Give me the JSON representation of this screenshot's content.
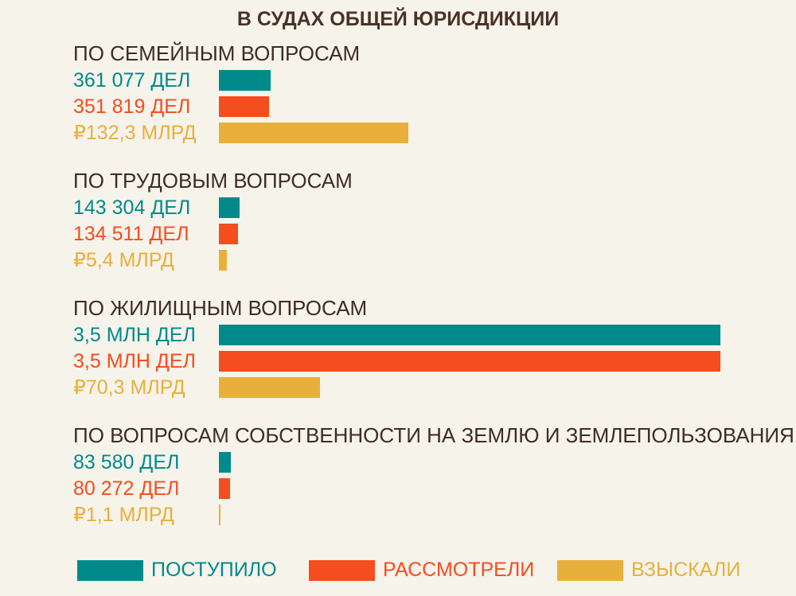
{
  "chart_data": {
    "type": "bar",
    "orientation": "horizontal",
    "title": "В СУДАХ ОБЩЕЙ ЮРИСДИКЦИИ",
    "legend": {
      "placement": "bottom",
      "entries": [
        "ПОСТУПИЛО",
        "РАССМОТРЕЛИ",
        "ВЗЫСКАЛИ"
      ]
    },
    "colors": [
      "#008a8a",
      "#f44d1f",
      "#e8b03a"
    ],
    "scales": {
      "cases_max": 3500000,
      "money_max_bn": 350
    },
    "groups": [
      {
        "name": "ПО СЕМЕЙНЫМ ВОПРОСАМ",
        "series": [
          {
            "name": "ПОСТУПИЛО",
            "value": 361077,
            "unit": "cases",
            "label": "361 077 ДЕЛ"
          },
          {
            "name": "РАССМОТРЕЛИ",
            "value": 351819,
            "unit": "cases",
            "label": "351 819 ДЕЛ"
          },
          {
            "name": "ВЗЫСКАЛИ",
            "value": 132.3,
            "unit": "bn_rub",
            "label": "₽132,3 МЛРД"
          }
        ]
      },
      {
        "name": "ПО ТРУДОВЫМ ВОПРОСАМ",
        "series": [
          {
            "name": "ПОСТУПИЛО",
            "value": 143304,
            "unit": "cases",
            "label": "143 304 ДЕЛ"
          },
          {
            "name": "РАССМОТРЕЛИ",
            "value": 134511,
            "unit": "cases",
            "label": "134 511 ДЕЛ"
          },
          {
            "name": "ВЗЫСКАЛИ",
            "value": 5.4,
            "unit": "bn_rub",
            "label": "₽5,4 МЛРД"
          }
        ]
      },
      {
        "name": "ПО ЖИЛИЩНЫМ ВОПРОСАМ",
        "series": [
          {
            "name": "ПОСТУПИЛО",
            "value": 3500000,
            "unit": "cases",
            "label": "3,5 МЛН ДЕЛ"
          },
          {
            "name": "РАССМОТРЕЛИ",
            "value": 3500000,
            "unit": "cases",
            "label": "3,5 МЛН ДЕЛ"
          },
          {
            "name": "ВЗЫСКАЛИ",
            "value": 70.3,
            "unit": "bn_rub",
            "label": "₽70,3 МЛРД"
          }
        ]
      },
      {
        "name": "ПО ВОПРОСАМ СОБСТВЕННОСТИ НА ЗЕМЛЮ И ЗЕМЛЕПОЛЬЗОВАНИЯ",
        "series": [
          {
            "name": "ПОСТУПИЛО",
            "value": 83580,
            "unit": "cases",
            "label": "83 580 ДЕЛ"
          },
          {
            "name": "РАССМОТРЕЛИ",
            "value": 80272,
            "unit": "cases",
            "label": "80 272 ДЕЛ"
          },
          {
            "name": "ВЗЫСКАЛИ",
            "value": 1.1,
            "unit": "bn_rub",
            "label": "₽1,1 МЛРД"
          }
        ]
      }
    ]
  }
}
